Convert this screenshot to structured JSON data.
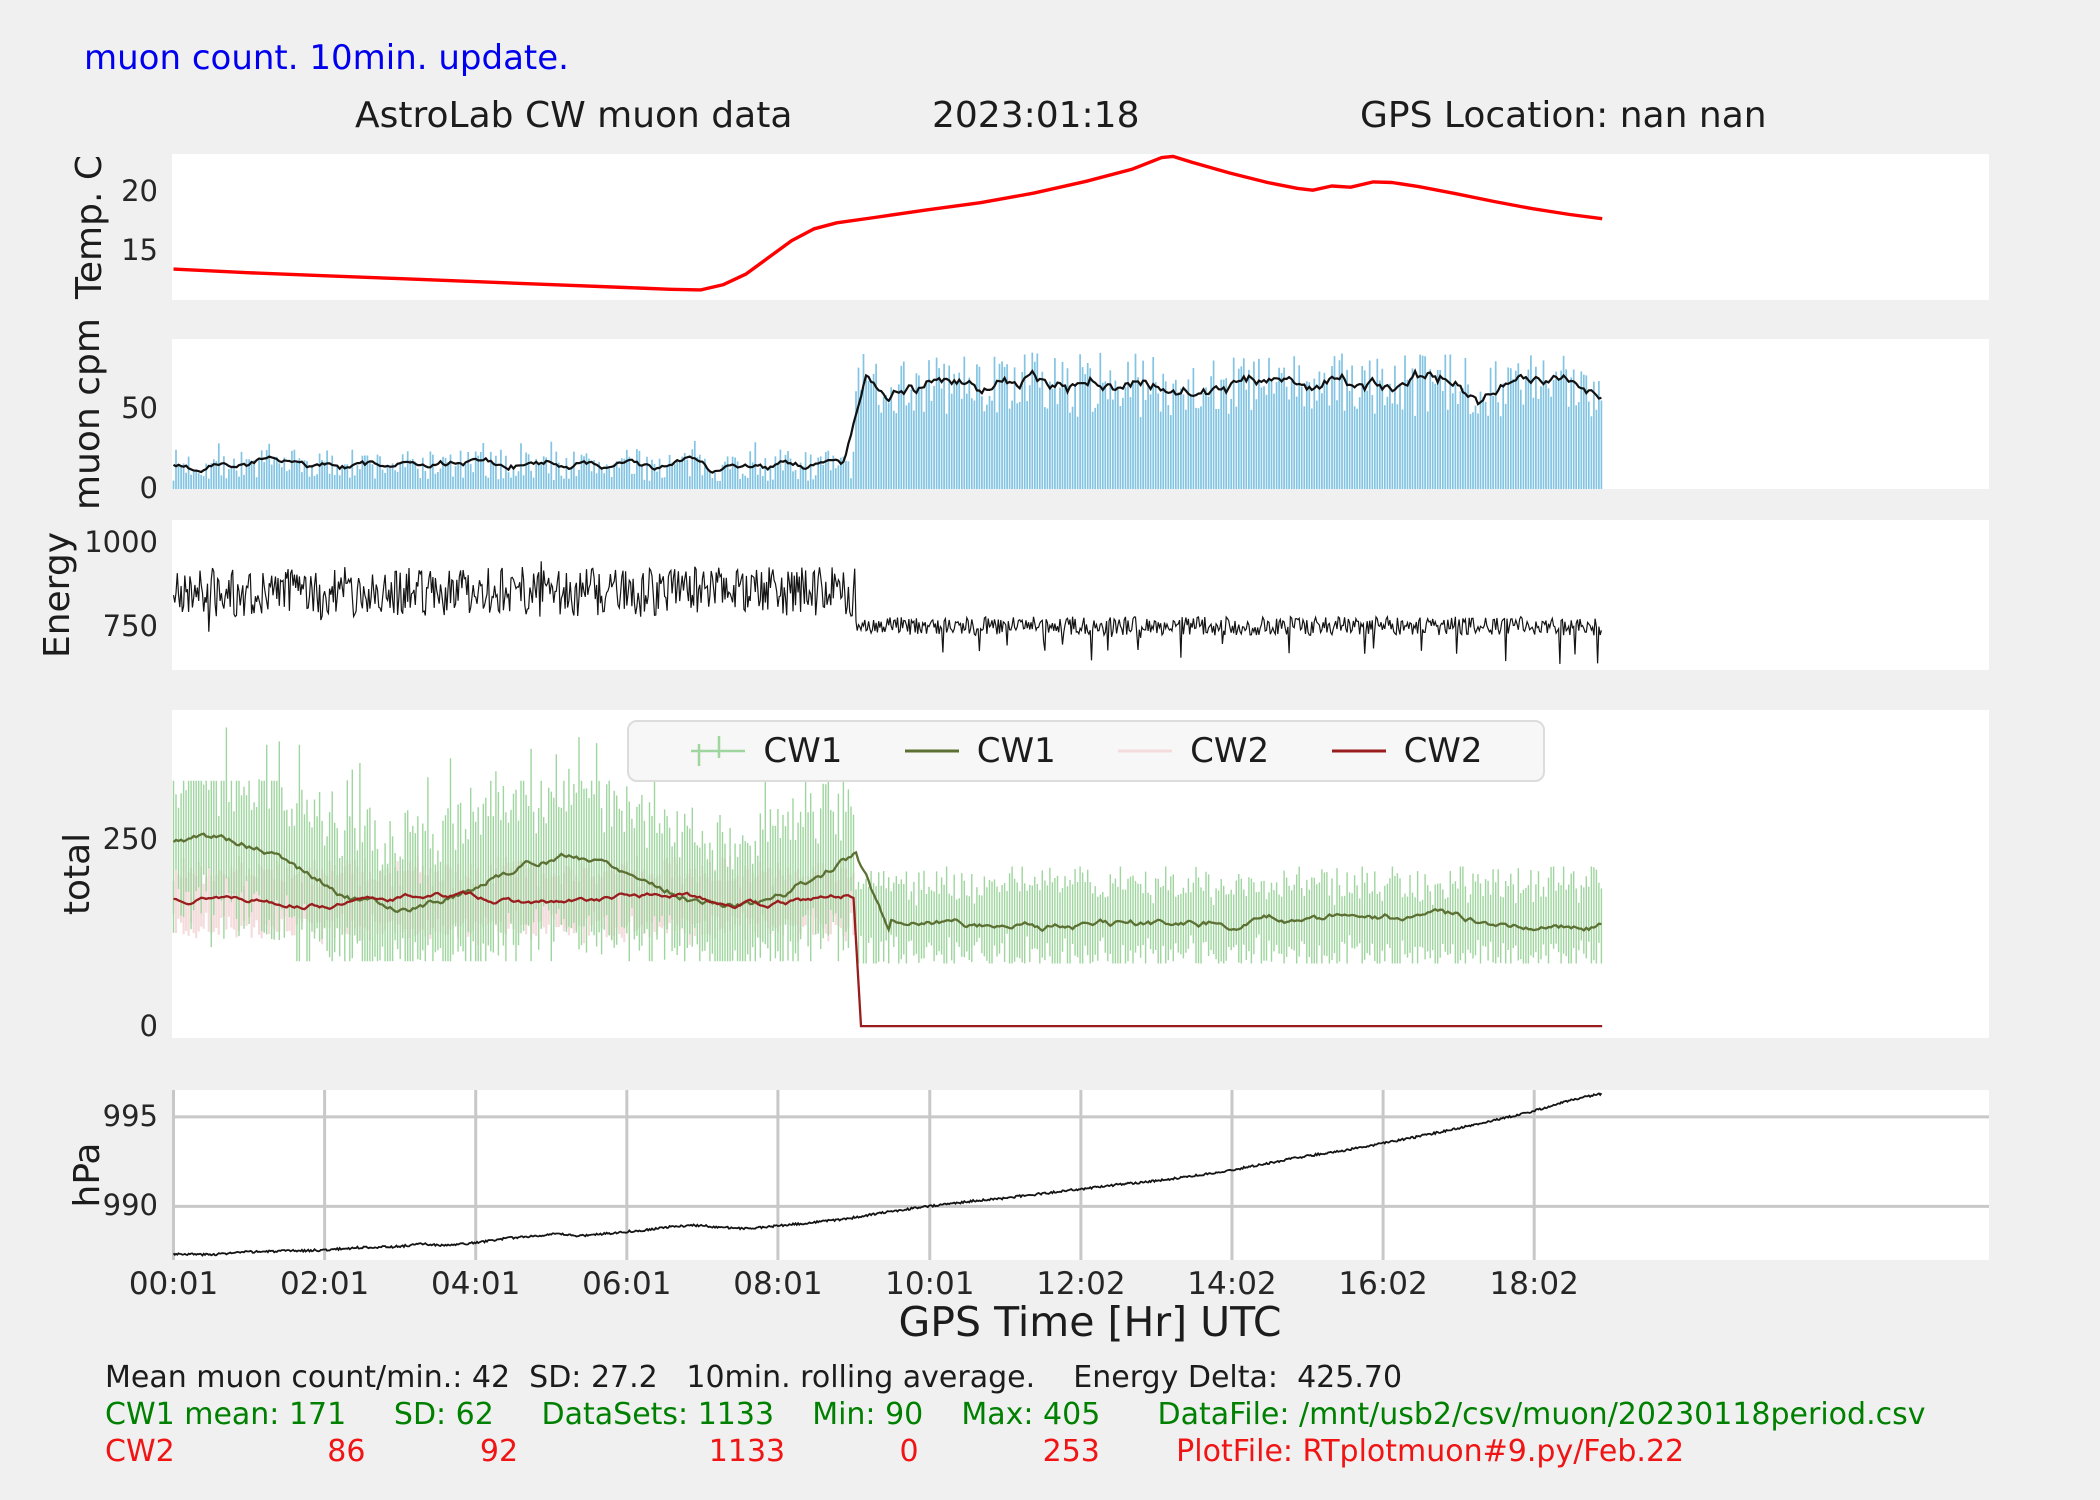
{
  "header": {
    "update_note": "muon count.  10min. update.",
    "update_note_color": "#0000ee",
    "title": "AstroLab CW muon data",
    "date": "2023:01:18",
    "gps_location": "GPS Location: nan   nan"
  },
  "xaxis": {
    "label": "GPS Time  [Hr] UTC",
    "xlim_hours": [
      0,
      24.05
    ],
    "ticks": [
      {
        "hour": 0.02,
        "label": "00:01"
      },
      {
        "hour": 2.02,
        "label": "02:01"
      },
      {
        "hour": 4.02,
        "label": "04:01"
      },
      {
        "hour": 6.02,
        "label": "06:01"
      },
      {
        "hour": 8.02,
        "label": "08:01"
      },
      {
        "hour": 10.03,
        "label": "10:01"
      },
      {
        "hour": 12.03,
        "label": "12:02"
      },
      {
        "hour": 14.03,
        "label": "14:02"
      },
      {
        "hour": 16.03,
        "label": "16:02"
      },
      {
        "hour": 18.03,
        "label": "18:02"
      }
    ]
  },
  "legend": {
    "entries": [
      {
        "label": "CW1",
        "color": "#9fd69f",
        "marker": "errorbar"
      },
      {
        "label": "CW1",
        "color": "#5c7033",
        "marker": "line"
      },
      {
        "label": "CW2",
        "color": "#f4dcdc",
        "marker": "line"
      },
      {
        "label": "CW2",
        "color": "#991d1d",
        "marker": "line"
      }
    ]
  },
  "footer": {
    "line1": {
      "text": "Mean muon count/min.: 42  SD: 27.2   10min. rolling average.    Energy Delta:  425.70",
      "color": "#1c1c1c"
    },
    "line2": {
      "text": "CW1 mean: 171     SD: 62     DataSets: 1133    Min: 90    Max: 405      DataFile: /mnt/usb2/csv/muon/20230118period.csv",
      "color": "#008000"
    },
    "line3": {
      "text": "CW2                86            92                    1133            0             253        PlotFile: RTplotmuon#9.py/Feb.22",
      "color": "#f01414"
    },
    "stats": {
      "mean_muon_count_per_min": 42,
      "sd": 27.2,
      "energy_delta": 425.7,
      "cw1": {
        "mean": 171,
        "sd": 62,
        "datasets": 1133,
        "min": 90,
        "max": 405
      },
      "cw2": {
        "mean": 86,
        "sd": 92,
        "datasets": 1133,
        "min": 0,
        "max": 253
      },
      "datafile": "/mnt/usb2/csv/muon/20230118period.csv",
      "plotfile": "RTplotmuon#9.py/Feb.22"
    }
  },
  "chart_data": [
    {
      "id": "temp",
      "type": "line",
      "ylabel": "Temp. C",
      "ylim": [
        10.9,
        23.2
      ],
      "yticks": [
        {
          "value": 20,
          "label": "20"
        },
        {
          "value": 15,
          "label": "15"
        }
      ],
      "color": "#ff0000",
      "line_width": 3.4,
      "keypoints_hr_degC": [
        [
          0.02,
          13.5
        ],
        [
          1,
          13.2
        ],
        [
          2,
          12.95
        ],
        [
          3,
          12.7
        ],
        [
          4,
          12.45
        ],
        [
          5,
          12.2
        ],
        [
          6,
          11.95
        ],
        [
          6.6,
          11.8
        ],
        [
          7.0,
          11.75
        ],
        [
          7.3,
          12.2
        ],
        [
          7.6,
          13.1
        ],
        [
          7.9,
          14.5
        ],
        [
          8.2,
          15.9
        ],
        [
          8.5,
          16.9
        ],
        [
          8.8,
          17.4
        ],
        [
          9.3,
          17.85
        ],
        [
          10,
          18.5
        ],
        [
          10.7,
          19.1
        ],
        [
          11.4,
          19.9
        ],
        [
          12.1,
          20.9
        ],
        [
          12.7,
          21.9
        ],
        [
          13.1,
          22.9
        ],
        [
          13.25,
          23.0
        ],
        [
          13.5,
          22.5
        ],
        [
          14,
          21.6
        ],
        [
          14.5,
          20.8
        ],
        [
          14.9,
          20.3
        ],
        [
          15.1,
          20.15
        ],
        [
          15.35,
          20.5
        ],
        [
          15.6,
          20.4
        ],
        [
          15.9,
          20.85
        ],
        [
          16.15,
          20.8
        ],
        [
          16.5,
          20.45
        ],
        [
          17,
          19.85
        ],
        [
          17.5,
          19.2
        ],
        [
          18,
          18.6
        ],
        [
          18.5,
          18.1
        ],
        [
          18.93,
          17.75
        ]
      ]
    },
    {
      "id": "muon_cpm",
      "type": "bar",
      "ylabel": "muon cpm",
      "ylim": [
        0,
        94
      ],
      "yticks": [
        {
          "value": 50,
          "label": "50"
        },
        {
          "value": 0,
          "label": "0"
        }
      ],
      "bar_color": "#82c4e2",
      "avg_color": "#111111",
      "data_start_hr": 0.02,
      "data_end_hr": 18.93,
      "step_hr": 9.05,
      "baseline_cpm": {
        "mean": 15,
        "range": [
          5,
          31
        ]
      },
      "elevated_cpm": {
        "mean": 66,
        "range": [
          45,
          93
        ]
      },
      "avg_note": "10min. rolling average"
    },
    {
      "id": "energy",
      "type": "line",
      "ylabel": "Energy",
      "ylim": [
        620,
        1070
      ],
      "yticks": [
        {
          "value": 1000,
          "label": "1000"
        },
        {
          "value": 750,
          "label": "750"
        }
      ],
      "color": "#141414",
      "step_hr": 9.05,
      "data_start_hr": 0.02,
      "data_end_hr": 18.93,
      "before": {
        "mean": 855,
        "spread": 75,
        "range": [
          735,
          1035
        ]
      },
      "after": {
        "mean": 752,
        "spread": 28,
        "range": [
          638,
          840
        ]
      }
    },
    {
      "id": "total",
      "type": "errorbar-line",
      "ylabel": "total",
      "ylim": [
        -15,
        425
      ],
      "yticks": [
        {
          "value": 250,
          "label": "250"
        },
        {
          "value": 0,
          "label": "0"
        }
      ],
      "data_start_hr": 0.02,
      "data_end_hr": 18.93,
      "step_hr": 9.05,
      "cw1_raw": {
        "color": "#9fd69f",
        "before": {
          "center": 205,
          "min": 88,
          "max": 405
        },
        "after": {
          "center": 142,
          "min": 85,
          "max": 215
        }
      },
      "cw1_avg": {
        "color": "#5c7033",
        "before_range": [
          155,
          262
        ],
        "after_level": 141
      },
      "cw2_raw": {
        "color": "#f4dcdc",
        "before": {
          "center": 170,
          "min": 110,
          "max": 250
        }
      },
      "cw2_avg": {
        "color": "#991d1d",
        "before_level": 171,
        "drop_hr": 9.05,
        "after_level": 1
      }
    },
    {
      "id": "hpa",
      "type": "line",
      "ylabel": "hPa",
      "ylim": [
        987.0,
        996.5
      ],
      "yticks": [
        {
          "value": 995,
          "label": "995"
        },
        {
          "value": 990,
          "label": "990"
        }
      ],
      "color": "#141414",
      "grid": true,
      "grid_color": "#c8c8c8",
      "keypoints_hr_hpa": [
        [
          0.02,
          987.35
        ],
        [
          0.5,
          987.3
        ],
        [
          1,
          987.45
        ],
        [
          1.5,
          987.5
        ],
        [
          2,
          987.55
        ],
        [
          2.5,
          987.7
        ],
        [
          3,
          987.75
        ],
        [
          3.3,
          987.9
        ],
        [
          3.6,
          987.8
        ],
        [
          4,
          987.95
        ],
        [
          4.4,
          988.2
        ],
        [
          4.8,
          988.35
        ],
        [
          5.1,
          988.45
        ],
        [
          5.4,
          988.35
        ],
        [
          5.8,
          988.5
        ],
        [
          6.2,
          988.65
        ],
        [
          6.6,
          988.85
        ],
        [
          6.9,
          988.95
        ],
        [
          7.2,
          988.85
        ],
        [
          7.6,
          988.75
        ],
        [
          8,
          988.9
        ],
        [
          8.5,
          989.1
        ],
        [
          9,
          989.35
        ],
        [
          9.5,
          989.7
        ],
        [
          10,
          990.0
        ],
        [
          10.5,
          990.25
        ],
        [
          11,
          990.45
        ],
        [
          11.5,
          990.7
        ],
        [
          12,
          990.95
        ],
        [
          12.5,
          991.2
        ],
        [
          13,
          991.4
        ],
        [
          13.5,
          991.7
        ],
        [
          14,
          992.0
        ],
        [
          14.5,
          992.4
        ],
        [
          15,
          992.8
        ],
        [
          15.5,
          993.1
        ],
        [
          16,
          993.5
        ],
        [
          16.5,
          993.9
        ],
        [
          17,
          994.35
        ],
        [
          17.5,
          994.8
        ],
        [
          18,
          995.3
        ],
        [
          18.4,
          995.8
        ],
        [
          18.7,
          996.1
        ],
        [
          18.93,
          996.3
        ]
      ]
    }
  ]
}
